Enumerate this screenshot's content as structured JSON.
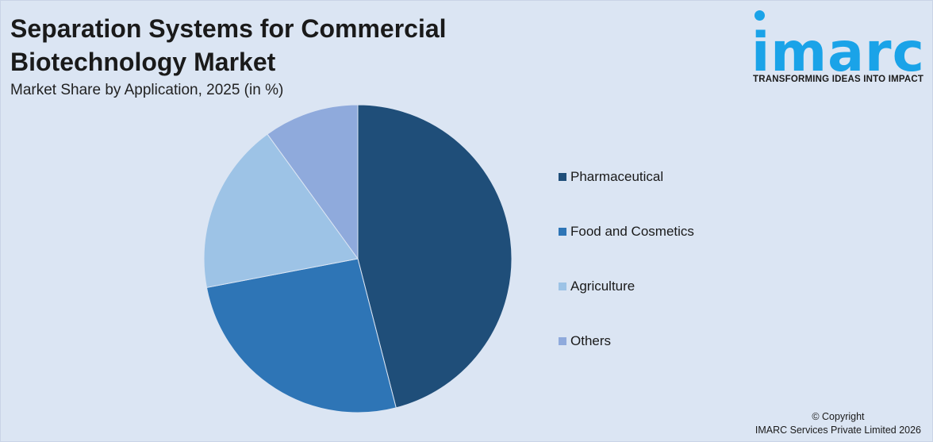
{
  "chart_data": {
    "type": "pie",
    "title": "Separation Systems for Commercial Biotechnology Market",
    "subtitle": "Market Share by Application, 2025 (in %)",
    "categories": [
      "Pharmaceutical",
      "Food and Cosmetics",
      "Agriculture",
      "Others"
    ],
    "values": [
      46,
      26,
      18,
      10
    ],
    "colors": [
      "#1f4e79",
      "#2e75b6",
      "#9dc3e6",
      "#8faadc"
    ],
    "start_angle_deg": 0,
    "direction": "clockwise",
    "legend_position": "right"
  },
  "logo": {
    "word": "imarc",
    "tagline": "TRANSFORMING IDEAS INTO IMPACT",
    "color": "#1aa3e8"
  },
  "footer": {
    "line1": "© Copyright",
    "line2": "IMARC Services Private Limited 2026"
  }
}
